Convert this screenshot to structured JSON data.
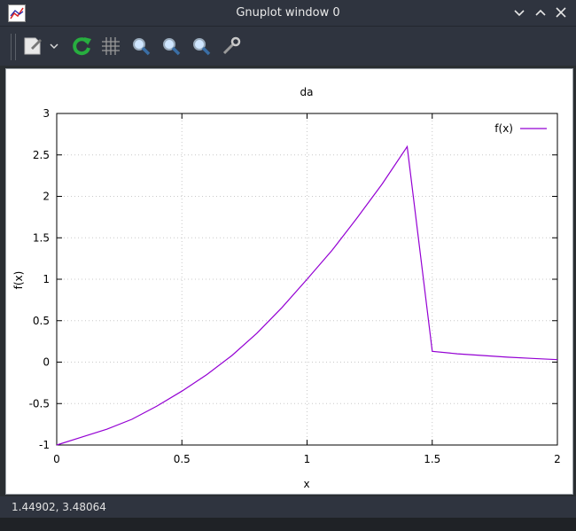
{
  "window": {
    "title": "Gnuplot window 0"
  },
  "toolbar": {
    "buttons": [
      "export-icon",
      "dropdown-icon",
      "replot-icon",
      "grid-icon",
      "zoom-prev-icon",
      "zoom-next-icon",
      "zoom-unzoom-icon",
      "settings-icon"
    ]
  },
  "status": {
    "coords": "1.44902,  3.48064"
  },
  "colors": {
    "series": "#9400d3",
    "grid": "#c8c8c8"
  },
  "chart_data": {
    "type": "line",
    "title": "da",
    "xlabel": "x",
    "ylabel": "f(x)",
    "xlim": [
      0,
      2
    ],
    "ylim": [
      -1,
      3
    ],
    "x_ticks": [
      "0",
      "0.5",
      "1",
      "1.5",
      "2"
    ],
    "y_ticks": [
      "-1",
      "-0.5",
      "0",
      "0.5",
      "1",
      "1.5",
      "2",
      "2.5",
      "3"
    ],
    "grid": true,
    "legend_position": "top-right",
    "series": [
      {
        "name": "f(x)",
        "x": [
          0,
          0.1,
          0.2,
          0.3,
          0.4,
          0.5,
          0.6,
          0.7,
          0.8,
          0.9,
          1.0,
          1.1,
          1.2,
          1.3,
          1.4,
          1.5,
          1.6,
          1.7,
          1.8,
          1.9,
          2.0
        ],
        "y": [
          -1,
          -0.905,
          -0.81,
          -0.69,
          -0.53,
          -0.35,
          -0.15,
          0.08,
          0.35,
          0.66,
          1.0,
          1.35,
          1.74,
          2.15,
          2.6,
          0.13,
          0.1,
          0.08,
          0.06,
          0.045,
          0.03
        ]
      }
    ]
  }
}
